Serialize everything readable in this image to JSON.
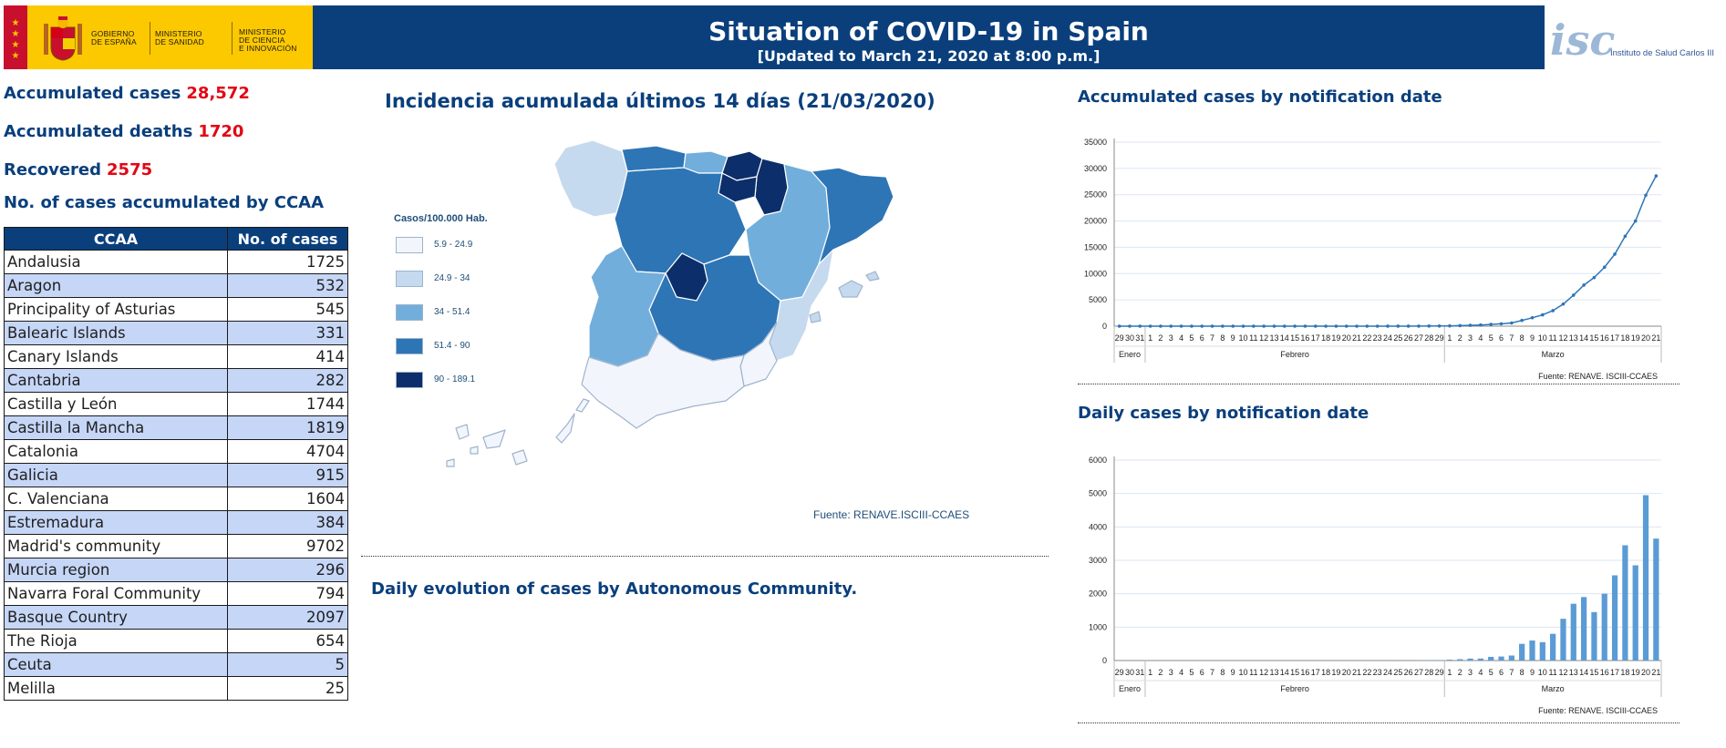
{
  "header": {
    "title": "Situation of COVID-19 in Spain",
    "subtitle": "[Updated to March 21, 2020 at 8:00 p.m.]",
    "gov_labels": [
      "GOBIERNO\nDE ESPAÑA",
      "MINISTERIO\nDE SANIDAD",
      "MINISTERIO\nDE CIENCIA\nE INNOVACIÓN"
    ],
    "institute": "Instituto de Salud Carlos III",
    "logo_text": "isc"
  },
  "stats": {
    "cases_label": "Accumulated cases",
    "cases_value": "28,572",
    "deaths_label": "Accumulated deaths",
    "deaths_value": "1720",
    "recovered_label": "Recovered",
    "recovered_value": "2575"
  },
  "ccaa_table": {
    "title": "No. of cases accumulated by CCAA",
    "col_ccaa": "CCAA",
    "col_cases": "No. of cases",
    "rows": [
      {
        "name": "Andalusia",
        "cases": "1725"
      },
      {
        "name": "Aragon",
        "cases": "532"
      },
      {
        "name": "Principality of Asturias",
        "cases": "545"
      },
      {
        "name": "Balearic Islands",
        "cases": "331"
      },
      {
        "name": "Canary Islands",
        "cases": "414"
      },
      {
        "name": "Cantabria",
        "cases": "282"
      },
      {
        "name": "Castilla y León",
        "cases": "1744"
      },
      {
        "name": "Castilla la Mancha",
        "cases": "1819"
      },
      {
        "name": "Catalonia",
        "cases": "4704"
      },
      {
        "name": "Galicia",
        "cases": "915"
      },
      {
        "name": "C. Valenciana",
        "cases": "1604"
      },
      {
        "name": "Estremadura",
        "cases": "384"
      },
      {
        "name": "Madrid's community",
        "cases": "9702"
      },
      {
        "name": "Murcia region",
        "cases": "296"
      },
      {
        "name": "Navarra Foral Community",
        "cases": "794"
      },
      {
        "name": "Basque Country",
        "cases": "2097"
      },
      {
        "name": "The Rioja",
        "cases": "654"
      },
      {
        "name": "Ceuta",
        "cases": "5"
      },
      {
        "name": "Melilla",
        "cases": "25"
      }
    ]
  },
  "map": {
    "title": "Incidencia acumulada últimos 14 días (21/03/2020)",
    "legend_title": "Casos/100.000 Hab.",
    "legend": [
      {
        "label": "5.9 - 24.9",
        "color": "#f2f6fc"
      },
      {
        "label": "24.9 - 34",
        "color": "#c6daef"
      },
      {
        "label": "34 - 51.4",
        "color": "#72aedb"
      },
      {
        "label": "51.4 - 90",
        "color": "#2e75b6"
      },
      {
        "label": "90 - 189.1",
        "color": "#0c2f6b"
      }
    ],
    "source": "Fuente: RENAVE.ISCIII-CCAES"
  },
  "evolution": {
    "title": "Daily evolution of cases by Autonomous Community."
  },
  "chart_data": [
    {
      "type": "line",
      "title": "Accumulated cases by notification date",
      "xlabel": "",
      "ylabel": "",
      "ylim": [
        0,
        35000
      ],
      "yticks": [
        0,
        5000,
        10000,
        15000,
        20000,
        25000,
        30000,
        35000
      ],
      "grid": true,
      "categories": [
        "29",
        "30",
        "31",
        "1",
        "2",
        "3",
        "4",
        "5",
        "6",
        "7",
        "8",
        "9",
        "10",
        "11",
        "12",
        "13",
        "14",
        "15",
        "16",
        "17",
        "18",
        "19",
        "20",
        "21",
        "22",
        "23",
        "24",
        "25",
        "26",
        "27",
        "28",
        "29",
        "1",
        "2",
        "3",
        "4",
        "5",
        "6",
        "7",
        "8",
        "9",
        "10",
        "11",
        "12",
        "13",
        "14",
        "15",
        "16",
        "17",
        "18",
        "19",
        "20",
        "21"
      ],
      "month_groups": [
        {
          "label": "Enero",
          "count": 3
        },
        {
          "label": "Febrero",
          "count": 29
        },
        {
          "label": "Marzo",
          "count": 21
        }
      ],
      "values": [
        0,
        0,
        0,
        1,
        1,
        1,
        1,
        1,
        1,
        1,
        1,
        1,
        1,
        1,
        1,
        1,
        1,
        1,
        1,
        1,
        1,
        1,
        1,
        1,
        1,
        2,
        3,
        5,
        8,
        15,
        25,
        35,
        60,
        100,
        160,
        220,
        330,
        450,
        600,
        1100,
        1600,
        2150,
        2950,
        4200,
        5900,
        7800,
        9250,
        11200,
        13700,
        17100,
        20000,
        24900,
        28572
      ],
      "source": "Fuente: RENAVE. ISCIII-CCAES",
      "color": "#2e75b6"
    },
    {
      "type": "bar",
      "title": "Daily cases by notification date",
      "xlabel": "",
      "ylabel": "",
      "ylim": [
        0,
        6000
      ],
      "yticks": [
        0,
        1000,
        2000,
        3000,
        4000,
        5000,
        6000
      ],
      "grid": true,
      "categories": [
        "29",
        "30",
        "31",
        "1",
        "2",
        "3",
        "4",
        "5",
        "6",
        "7",
        "8",
        "9",
        "10",
        "11",
        "12",
        "13",
        "14",
        "15",
        "16",
        "17",
        "18",
        "19",
        "20",
        "21",
        "22",
        "23",
        "24",
        "25",
        "26",
        "27",
        "28",
        "29",
        "1",
        "2",
        "3",
        "4",
        "5",
        "6",
        "7",
        "8",
        "9",
        "10",
        "11",
        "12",
        "13",
        "14",
        "15",
        "16",
        "17",
        "18",
        "19",
        "20",
        "21"
      ],
      "month_groups": [
        {
          "label": "Enero",
          "count": 3
        },
        {
          "label": "Febrero",
          "count": 29
        },
        {
          "label": "Marzo",
          "count": 21
        }
      ],
      "values": [
        0,
        0,
        0,
        1,
        0,
        0,
        0,
        0,
        0,
        0,
        0,
        0,
        0,
        0,
        0,
        0,
        0,
        0,
        0,
        0,
        0,
        0,
        0,
        0,
        0,
        1,
        1,
        2,
        3,
        7,
        10,
        10,
        25,
        40,
        60,
        60,
        110,
        120,
        150,
        500,
        600,
        550,
        800,
        1250,
        1700,
        1900,
        1450,
        2000,
        2550,
        3450,
        2850,
        4950,
        3650
      ],
      "source": "Fuente: RENAVE. ISCIII-CCAES",
      "color": "#5b9bd5"
    }
  ]
}
